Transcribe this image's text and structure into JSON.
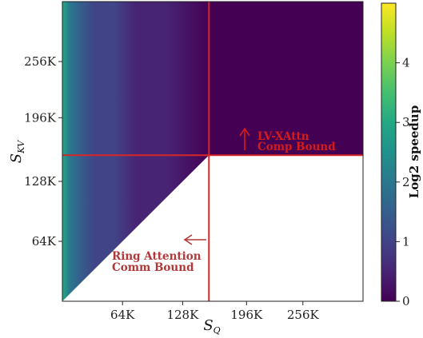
{
  "chart_data": {
    "type": "heatmap",
    "colormap": "viridis",
    "xlabel": {
      "main": "S",
      "sub": "Q"
    },
    "ylabel": {
      "main": "S",
      "sub": "KV"
    },
    "x_ticks": [
      {
        "value": 64,
        "label": "64K"
      },
      {
        "value": 128,
        "label": "128K"
      },
      {
        "value": 196,
        "label": "196K"
      },
      {
        "value": 256,
        "label": "256K"
      }
    ],
    "y_ticks": [
      {
        "value": 64,
        "label": "64K"
      },
      {
        "value": 128,
        "label": "128K"
      },
      {
        "value": 196,
        "label": "196K"
      },
      {
        "value": 256,
        "label": "256K"
      }
    ],
    "xlim": [
      0,
      320
    ],
    "ylim": [
      0,
      320
    ],
    "threshold_x": 156,
    "threshold_y": 156,
    "colorbar": {
      "label": "Log2 speedup",
      "range": [
        0,
        5
      ],
      "ticks": [
        0,
        1,
        2,
        3,
        4
      ]
    },
    "annotations": [
      {
        "text": [
          "LV-XAttn",
          "Comp Bound"
        ],
        "arrow": "up",
        "color": "#d41c1c"
      },
      {
        "text": [
          "Ring Attention",
          "Comm Bound"
        ],
        "arrow": "left",
        "color": "#b03838"
      }
    ],
    "white_regions": [
      "below diagonal where S_KV < S_Q",
      "S_Q > 156K and S_KV < 156K"
    ]
  }
}
